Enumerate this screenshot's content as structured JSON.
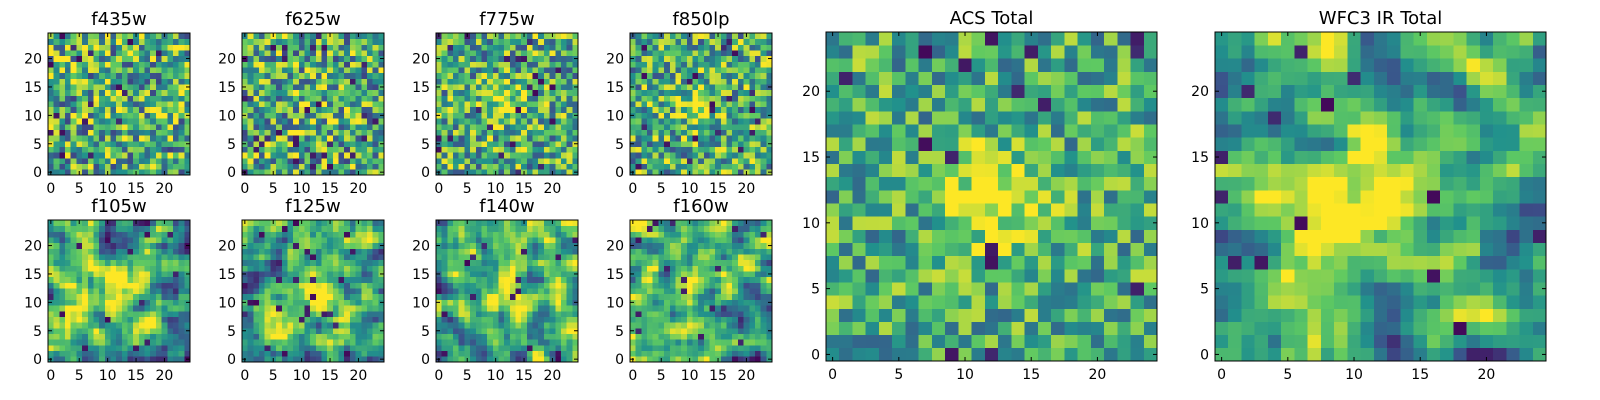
{
  "figure": {
    "colormap": [
      "#440154",
      "#3b528b",
      "#21918c",
      "#5ec962",
      "#fde725"
    ]
  },
  "chart_data": [
    {
      "type": "heatmap",
      "title": "f435w",
      "grid_size": 25,
      "x_ticks": [
        0,
        5,
        10,
        15,
        20
      ],
      "y_ticks": [
        0,
        5,
        10,
        15,
        20
      ],
      "xlim": [
        -0.5,
        24.5
      ],
      "ylim": [
        -0.5,
        24.5
      ],
      "source_amplitude": 0.05,
      "source_sigma": 3.0,
      "noise": 0.42,
      "smoothing": 0,
      "dark_fraction": 0.04,
      "seed": 11
    },
    {
      "type": "heatmap",
      "title": "f625w",
      "grid_size": 25,
      "x_ticks": [
        0,
        5,
        10,
        15,
        20
      ],
      "y_ticks": [
        0,
        5,
        10,
        15,
        20
      ],
      "xlim": [
        -0.5,
        24.5
      ],
      "ylim": [
        -0.5,
        24.5
      ],
      "source_amplitude": 0.1,
      "source_sigma": 3.0,
      "noise": 0.42,
      "smoothing": 0,
      "dark_fraction": 0.04,
      "seed": 23
    },
    {
      "type": "heatmap",
      "title": "f775w",
      "grid_size": 25,
      "x_ticks": [
        0,
        5,
        10,
        15,
        20
      ],
      "y_ticks": [
        0,
        5,
        10,
        15,
        20
      ],
      "xlim": [
        -0.5,
        24.5
      ],
      "ylim": [
        -0.5,
        24.5
      ],
      "source_amplitude": 0.3,
      "source_sigma": 2.5,
      "noise": 0.38,
      "smoothing": 0,
      "dark_fraction": 0.04,
      "seed": 37
    },
    {
      "type": "heatmap",
      "title": "f850lp",
      "grid_size": 25,
      "x_ticks": [
        0,
        5,
        10,
        15,
        20
      ],
      "y_ticks": [
        0,
        5,
        10,
        15,
        20
      ],
      "xlim": [
        -0.5,
        24.5
      ],
      "ylim": [
        -0.5,
        24.5
      ],
      "source_amplitude": 0.35,
      "source_sigma": 2.5,
      "noise": 0.38,
      "smoothing": 0,
      "dark_fraction": 0.04,
      "seed": 41
    },
    {
      "type": "heatmap",
      "title": "f105w",
      "grid_size": 25,
      "x_ticks": [
        0,
        5,
        10,
        15,
        20
      ],
      "y_ticks": [
        0,
        5,
        10,
        15,
        20
      ],
      "xlim": [
        -0.5,
        24.5
      ],
      "ylim": [
        -0.5,
        24.5
      ],
      "source_amplitude": 0.35,
      "source_sigma": 3.0,
      "noise": 0.55,
      "smoothing": 1,
      "dark_fraction": 0.03,
      "seed": 53
    },
    {
      "type": "heatmap",
      "title": "f125w",
      "grid_size": 25,
      "x_ticks": [
        0,
        5,
        10,
        15,
        20
      ],
      "y_ticks": [
        0,
        5,
        10,
        15,
        20
      ],
      "xlim": [
        -0.5,
        24.5
      ],
      "ylim": [
        -0.5,
        24.5
      ],
      "source_amplitude": 0.35,
      "source_sigma": 3.0,
      "noise": 0.55,
      "smoothing": 1,
      "dark_fraction": 0.03,
      "seed": 67
    },
    {
      "type": "heatmap",
      "title": "f140w",
      "grid_size": 25,
      "x_ticks": [
        0,
        5,
        10,
        15,
        20
      ],
      "y_ticks": [
        0,
        5,
        10,
        15,
        20
      ],
      "xlim": [
        -0.5,
        24.5
      ],
      "ylim": [
        -0.5,
        24.5
      ],
      "source_amplitude": 0.35,
      "source_sigma": 3.5,
      "noise": 0.55,
      "smoothing": 1,
      "dark_fraction": 0.03,
      "seed": 79
    },
    {
      "type": "heatmap",
      "title": "f160w",
      "grid_size": 25,
      "x_ticks": [
        0,
        5,
        10,
        15,
        20
      ],
      "y_ticks": [
        0,
        5,
        10,
        15,
        20
      ],
      "xlim": [
        -0.5,
        24.5
      ],
      "ylim": [
        -0.5,
        24.5
      ],
      "source_amplitude": 0.35,
      "source_sigma": 3.0,
      "noise": 0.55,
      "smoothing": 1,
      "dark_fraction": 0.03,
      "seed": 83
    },
    {
      "type": "heatmap",
      "title": "ACS Total",
      "grid_size": 25,
      "x_ticks": [
        0,
        5,
        10,
        15,
        20
      ],
      "y_ticks": [
        0,
        5,
        10,
        15,
        20
      ],
      "xlim": [
        -0.5,
        24.5
      ],
      "ylim": [
        -0.5,
        24.5
      ],
      "source_amplitude": 0.45,
      "source_sigma": 2.5,
      "noise": 0.3,
      "smoothing": 0,
      "dark_fraction": 0.03,
      "seed": 97
    },
    {
      "type": "heatmap",
      "title": "WFC3 IR Total",
      "grid_size": 25,
      "x_ticks": [
        0,
        5,
        10,
        15,
        20
      ],
      "y_ticks": [
        0,
        5,
        10,
        15,
        20
      ],
      "xlim": [
        -0.5,
        24.5
      ],
      "ylim": [
        -0.5,
        24.5
      ],
      "source_amplitude": 0.6,
      "source_sigma": 3.0,
      "noise": 0.5,
      "smoothing": 1,
      "dark_fraction": 0.02,
      "seed": 101
    }
  ]
}
